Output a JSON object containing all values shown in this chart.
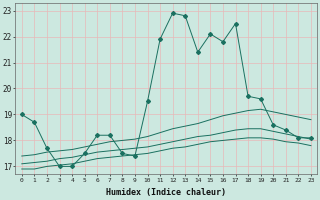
{
  "xlabel": "Humidex (Indice chaleur)",
  "bg_color": "#cce8e0",
  "grid_color": "#e8b8b8",
  "line_color": "#1a7060",
  "xlim": [
    -0.5,
    23.5
  ],
  "ylim": [
    16.7,
    23.3
  ],
  "yticks": [
    17,
    18,
    19,
    20,
    21,
    22,
    23
  ],
  "xticks": [
    0,
    1,
    2,
    3,
    4,
    5,
    6,
    7,
    8,
    9,
    10,
    11,
    12,
    13,
    14,
    15,
    16,
    17,
    18,
    19,
    20,
    21,
    22,
    23
  ],
  "series": [
    {
      "x": [
        0,
        1,
        2,
        3,
        4,
        5,
        6,
        7,
        8,
        9,
        10,
        11,
        12,
        13,
        14,
        15,
        16,
        17,
        18,
        19,
        20,
        21,
        22,
        23
      ],
      "y": [
        19.0,
        18.7,
        17.7,
        17.0,
        17.0,
        17.5,
        18.2,
        18.2,
        17.5,
        17.4,
        19.5,
        21.9,
        22.9,
        22.8,
        21.4,
        22.1,
        21.8,
        22.5,
        19.7,
        19.6,
        18.6,
        18.4,
        18.1,
        18.1
      ],
      "marker": "D",
      "markersize": 2.0
    },
    {
      "x": [
        0,
        1,
        2,
        3,
        4,
        5,
        6,
        7,
        8,
        9,
        10,
        11,
        12,
        13,
        14,
        15,
        16,
        17,
        18,
        19,
        20,
        21,
        22,
        23
      ],
      "y": [
        17.4,
        17.45,
        17.55,
        17.6,
        17.65,
        17.75,
        17.85,
        17.95,
        18.0,
        18.05,
        18.15,
        18.3,
        18.45,
        18.55,
        18.65,
        18.8,
        18.95,
        19.05,
        19.15,
        19.2,
        19.1,
        19.0,
        18.9,
        18.8
      ],
      "marker": null,
      "markersize": 0
    },
    {
      "x": [
        0,
        1,
        2,
        3,
        4,
        5,
        6,
        7,
        8,
        9,
        10,
        11,
        12,
        13,
        14,
        15,
        16,
        17,
        18,
        19,
        20,
        21,
        22,
        23
      ],
      "y": [
        17.1,
        17.15,
        17.2,
        17.3,
        17.35,
        17.45,
        17.55,
        17.6,
        17.65,
        17.7,
        17.75,
        17.85,
        17.95,
        18.05,
        18.15,
        18.2,
        18.3,
        18.4,
        18.45,
        18.45,
        18.35,
        18.25,
        18.15,
        18.05
      ],
      "marker": null,
      "markersize": 0
    },
    {
      "x": [
        0,
        1,
        2,
        3,
        4,
        5,
        6,
        7,
        8,
        9,
        10,
        11,
        12,
        13,
        14,
        15,
        16,
        17,
        18,
        19,
        20,
        21,
        22,
        23
      ],
      "y": [
        16.9,
        16.9,
        17.0,
        17.05,
        17.1,
        17.2,
        17.3,
        17.35,
        17.4,
        17.45,
        17.5,
        17.6,
        17.7,
        17.75,
        17.85,
        17.95,
        18.0,
        18.05,
        18.1,
        18.1,
        18.05,
        17.95,
        17.9,
        17.8
      ],
      "marker": null,
      "markersize": 0
    }
  ]
}
